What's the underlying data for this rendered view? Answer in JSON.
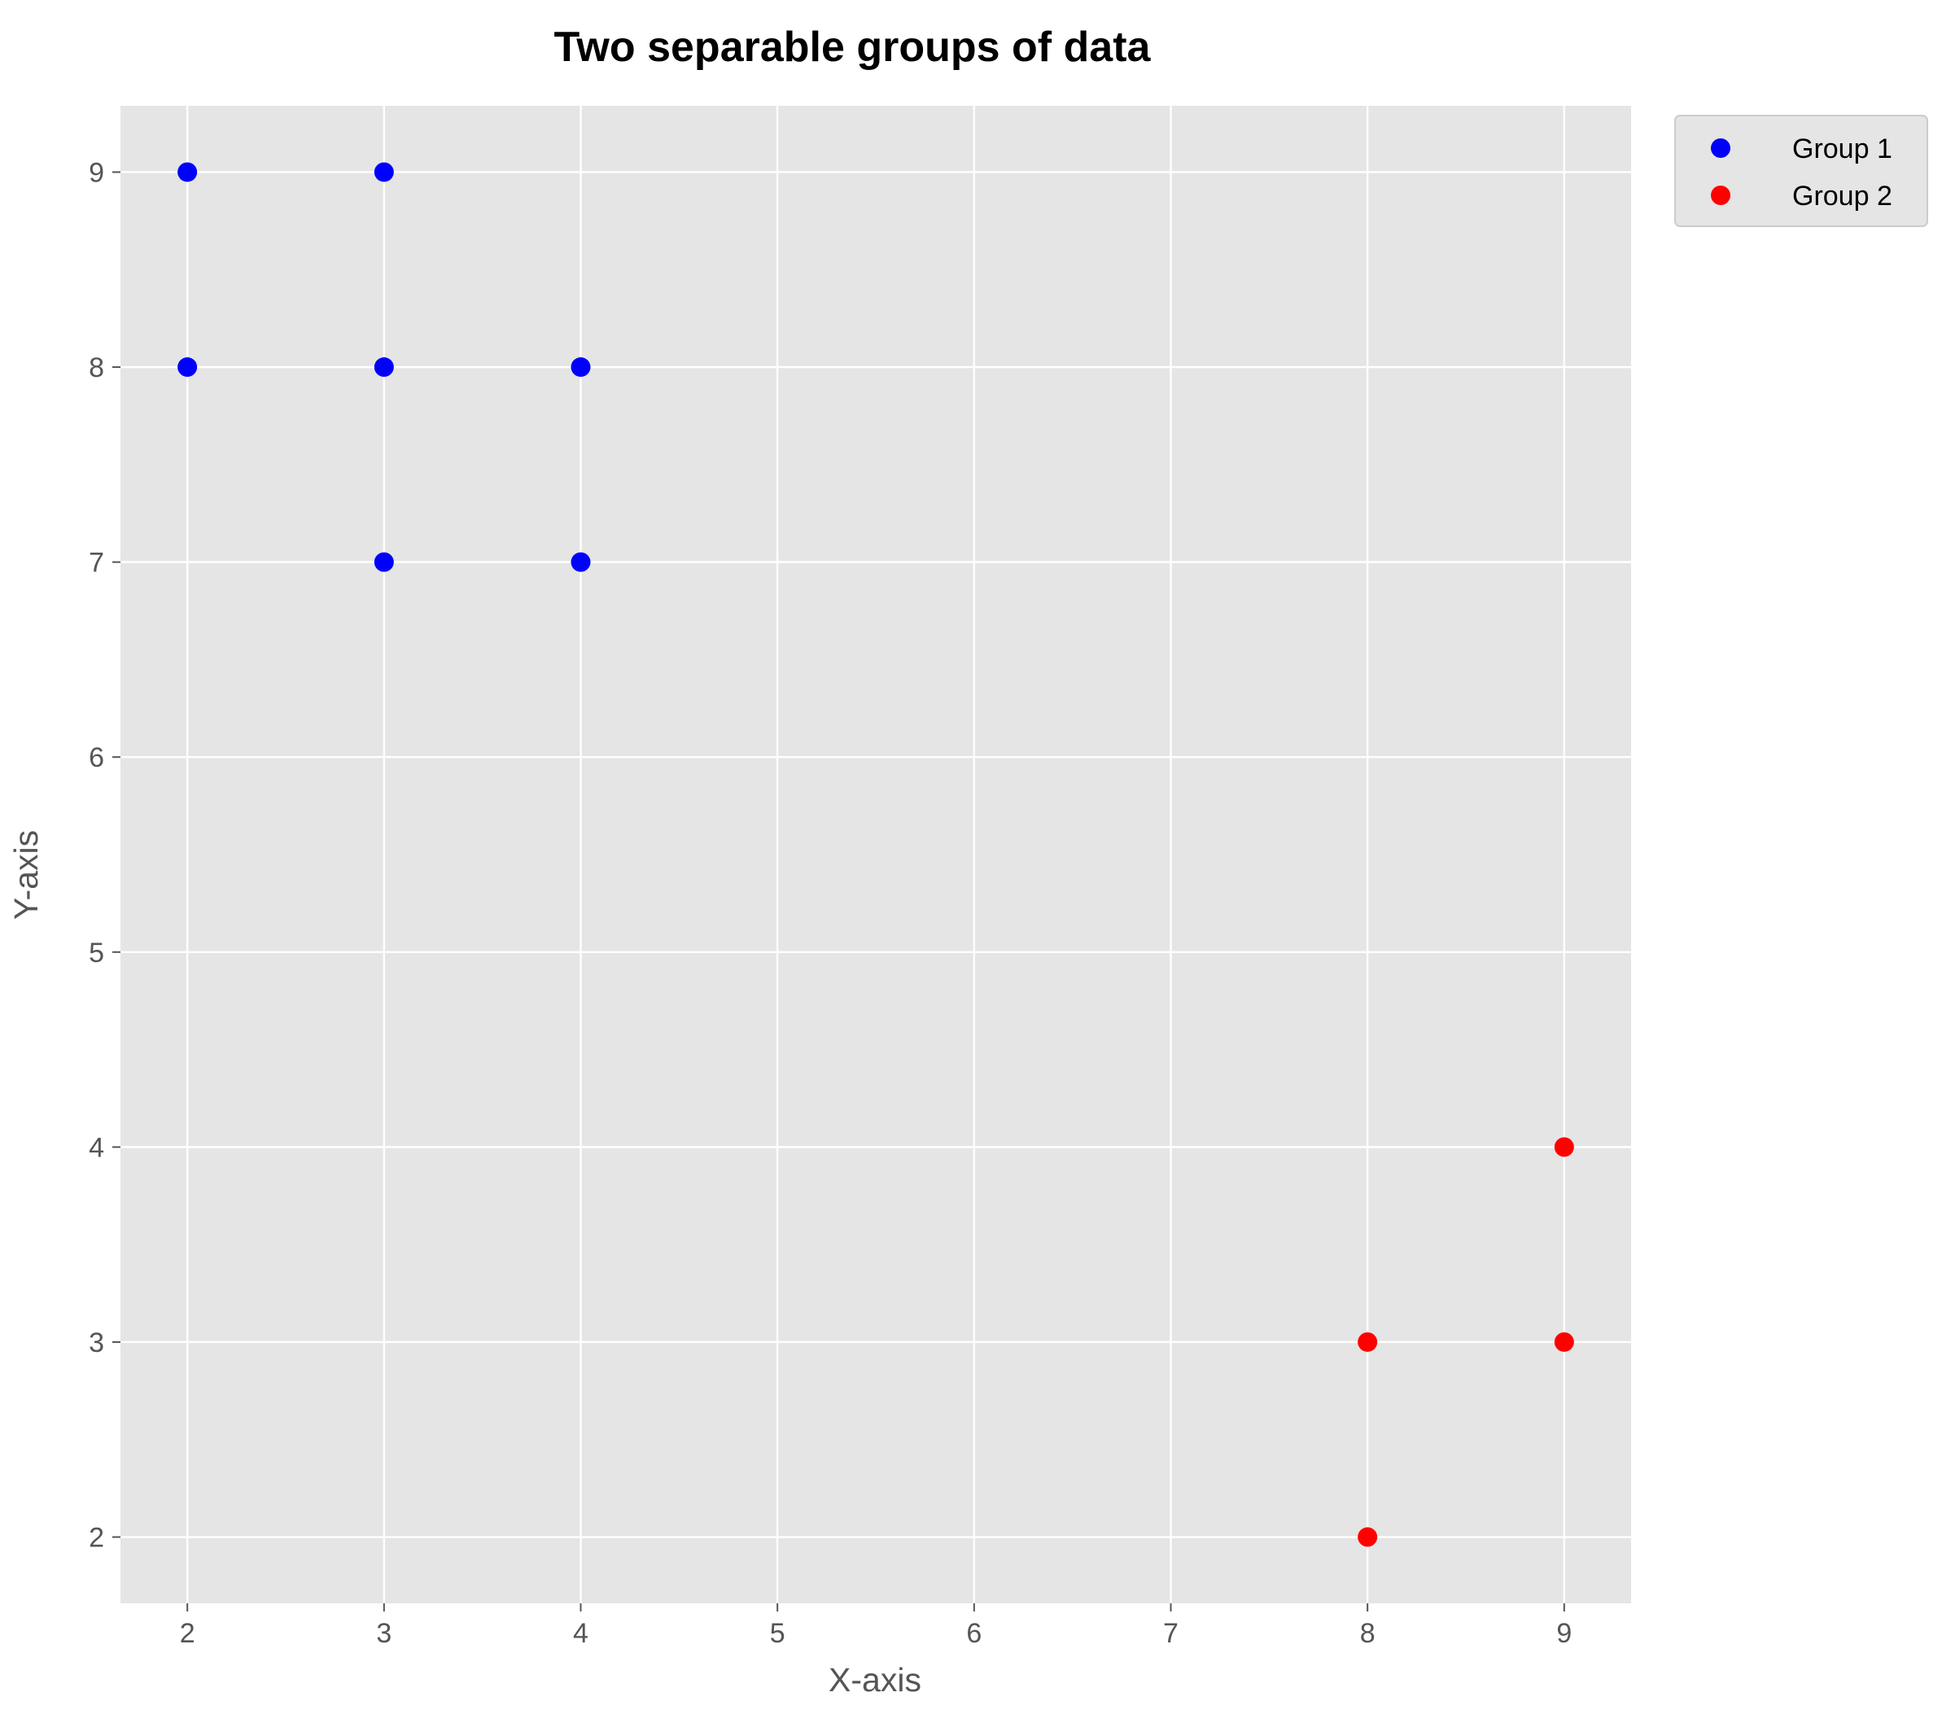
{
  "chart_data": {
    "type": "scatter",
    "title": "Two separable groups of data",
    "xlabel": "X-axis",
    "ylabel": "Y-axis",
    "xlim": [
      1.66,
      9.34
    ],
    "ylim": [
      1.66,
      9.34
    ],
    "xticks": [
      2,
      3,
      4,
      5,
      6,
      7,
      8,
      9
    ],
    "yticks": [
      2,
      3,
      4,
      5,
      6,
      7,
      8,
      9
    ],
    "grid": true,
    "legend_position": "outside top-right",
    "series": [
      {
        "name": "Group 1",
        "color": "#0000ff",
        "points": [
          [
            2,
            9
          ],
          [
            3,
            9
          ],
          [
            2,
            8
          ],
          [
            3,
            8
          ],
          [
            4,
            8
          ],
          [
            3,
            7
          ],
          [
            4,
            7
          ]
        ]
      },
      {
        "name": "Group 2",
        "color": "#ff0000",
        "points": [
          [
            9,
            4
          ],
          [
            8,
            3
          ],
          [
            9,
            3
          ],
          [
            8,
            2
          ]
        ]
      }
    ]
  }
}
